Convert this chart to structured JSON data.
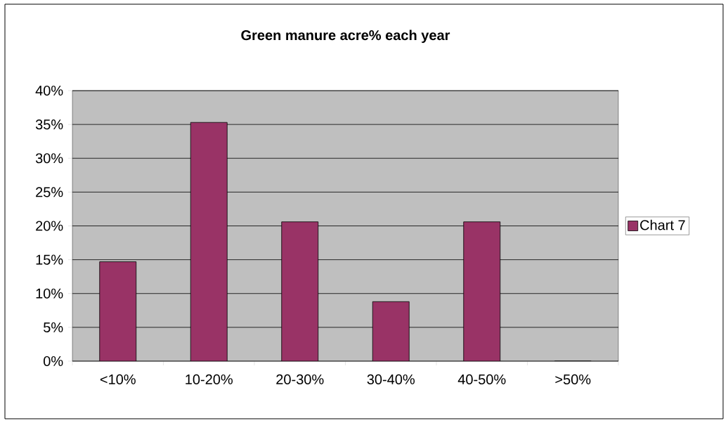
{
  "chart_data": {
    "type": "bar",
    "title": "Green manure acre% each year",
    "categories": [
      "<10%",
      "10-20%",
      "20-30%",
      "30-40%",
      "40-50%",
      ">50%"
    ],
    "series": [
      {
        "name": "Chart 7",
        "color": "#993366",
        "values": [
          14.7,
          35.3,
          20.6,
          8.8,
          20.6,
          0
        ]
      }
    ],
    "ylim": [
      0,
      40
    ],
    "yticks": [
      {
        "value": 0,
        "label": "0%"
      },
      {
        "value": 5,
        "label": "5%"
      },
      {
        "value": 10,
        "label": "10%"
      },
      {
        "value": 15,
        "label": "15%"
      },
      {
        "value": 20,
        "label": "20%"
      },
      {
        "value": 25,
        "label": "25%"
      },
      {
        "value": 30,
        "label": "30%"
      },
      {
        "value": 35,
        "label": "35%"
      },
      {
        "value": 40,
        "label": "40%"
      }
    ],
    "grid": "y",
    "legend": "right"
  }
}
